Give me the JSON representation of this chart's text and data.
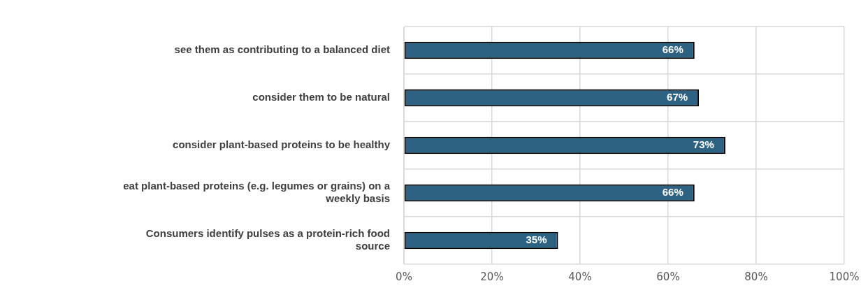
{
  "chart_data": {
    "type": "bar",
    "orientation": "horizontal",
    "categories": [
      "see them as contributing to a balanced diet",
      "consider them to be natural",
      "consider plant-based proteins to be healthy",
      "eat plant-based proteins (e.g. legumes or grains) on a weekly basis",
      "Consumers identify pulses as a protein-rich food source"
    ],
    "values": [
      66,
      67,
      73,
      66,
      35
    ],
    "value_labels": [
      "66%",
      "67%",
      "73%",
      "66%",
      "35%"
    ],
    "color": "#2e6283",
    "xlim": [
      0,
      100
    ],
    "xticks": [
      {
        "value": 0,
        "label": "0%"
      },
      {
        "value": 20,
        "label": "20%"
      },
      {
        "value": 40,
        "label": "40%"
      },
      {
        "value": 60,
        "label": "60%"
      },
      {
        "value": 80,
        "label": "80%"
      },
      {
        "value": 100,
        "label": "100%"
      }
    ],
    "grid": true,
    "legend": false
  }
}
